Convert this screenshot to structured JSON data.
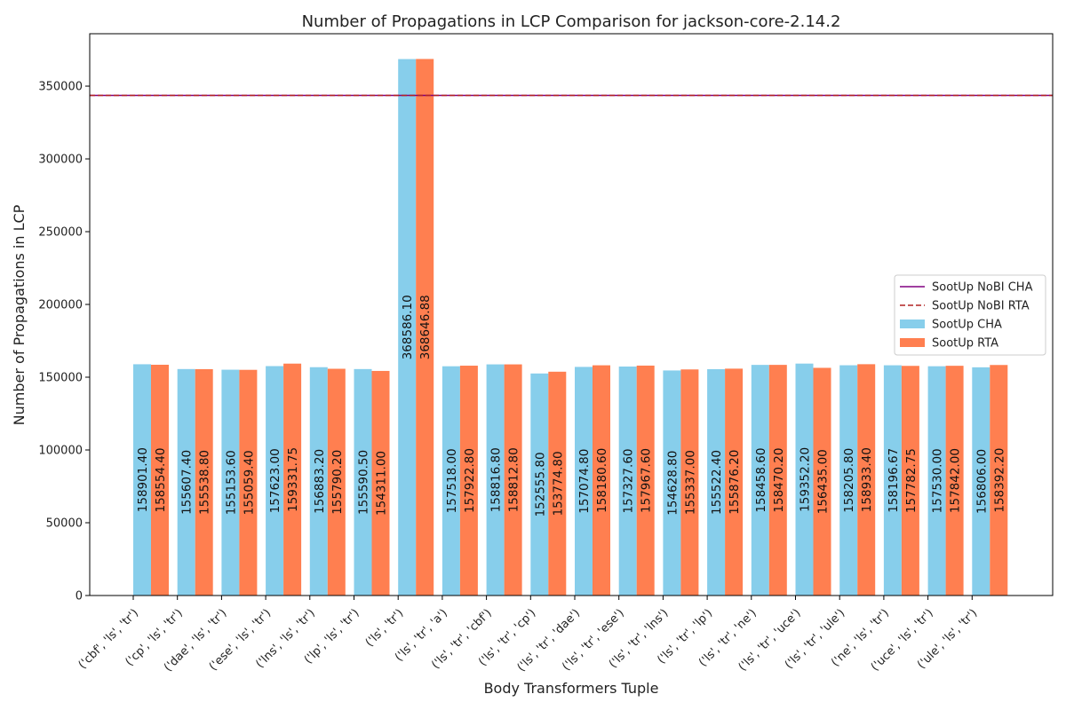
{
  "chart_data": {
    "type": "bar",
    "title": "Number of Propagations in LCP Comparison for jackson-core-2.14.2",
    "xlabel": "Body Transformers Tuple",
    "ylabel": "Number of Propagations in LCP",
    "ylim": [
      0,
      386000
    ],
    "yticks": [
      0,
      50000,
      100000,
      150000,
      200000,
      250000,
      300000,
      350000
    ],
    "ytick_labels": [
      "0",
      "50000",
      "100000",
      "150000",
      "200000",
      "250000",
      "300000",
      "350000"
    ],
    "grid": false,
    "legend_position": "center-right",
    "categories": [
      "('cbf', 'ls', 'tr')",
      "('cp', 'ls', 'tr')",
      "('dae', 'ls', 'tr')",
      "('ese', 'ls', 'tr')",
      "('lns', 'ls', 'tr')",
      "('lp', 'ls', 'tr')",
      "('ls', 'tr')",
      "('ls', 'tr', 'a')",
      "('ls', 'tr', 'cbf')",
      "('ls', 'tr', 'cp')",
      "('ls', 'tr', 'dae')",
      "('ls', 'tr', 'ese')",
      "('ls', 'tr', 'lns')",
      "('ls', 'tr', 'lp')",
      "('ls', 'tr', 'ne')",
      "('ls', 'tr', 'uce')",
      "('ls', 'tr', 'ule')",
      "('ne', 'ls', 'tr')",
      "('uce', 'ls', 'tr')",
      "('ule', 'ls', 'tr')"
    ],
    "series": [
      {
        "name": "SootUp CHA",
        "color": "#87ceeb",
        "values": [
          158901.4,
          155607.4,
          155153.6,
          157623.0,
          156883.2,
          155590.5,
          368586.1,
          157518.0,
          158816.8,
          152555.8,
          157074.8,
          157327.6,
          154628.8,
          155522.4,
          158458.6,
          159352.2,
          158205.8,
          158196.67,
          157530.0,
          156806.0
        ],
        "labels": [
          "158901.40",
          "155607.40",
          "155153.60",
          "157623.00",
          "156883.20",
          "155590.50",
          "368586.10",
          "157518.00",
          "158816.80",
          "152555.80",
          "157074.80",
          "157327.60",
          "154628.80",
          "155522.40",
          "158458.60",
          "159352.20",
          "158205.80",
          "158196.67",
          "157530.00",
          "156806.00"
        ]
      },
      {
        "name": "SootUp RTA",
        "color": "#ff7f50",
        "values": [
          158554.4,
          155538.8,
          155059.4,
          159331.75,
          155790.2,
          154311.0,
          368646.88,
          157922.8,
          158812.8,
          153774.8,
          158180.6,
          157967.6,
          155337.0,
          155876.2,
          158470.2,
          156435.0,
          158933.4,
          157782.75,
          157842.0,
          158392.2
        ],
        "labels": [
          "158554.40",
          "155538.80",
          "155059.40",
          "159331.75",
          "155790.20",
          "154311.00",
          "368646.88",
          "157922.80",
          "158812.80",
          "153774.80",
          "158180.60",
          "157967.60",
          "155337.00",
          "155876.20",
          "158470.20",
          "156435.00",
          "158933.40",
          "157782.75",
          "157842.00",
          "158392.20"
        ]
      }
    ],
    "hlines": [
      {
        "name": "SootUp NoBI CHA",
        "value": 343600,
        "color": "#800080",
        "style": "solid"
      },
      {
        "name": "SootUp NoBI RTA",
        "value": 343600,
        "color": "#b22222",
        "style": "dashed"
      }
    ]
  }
}
